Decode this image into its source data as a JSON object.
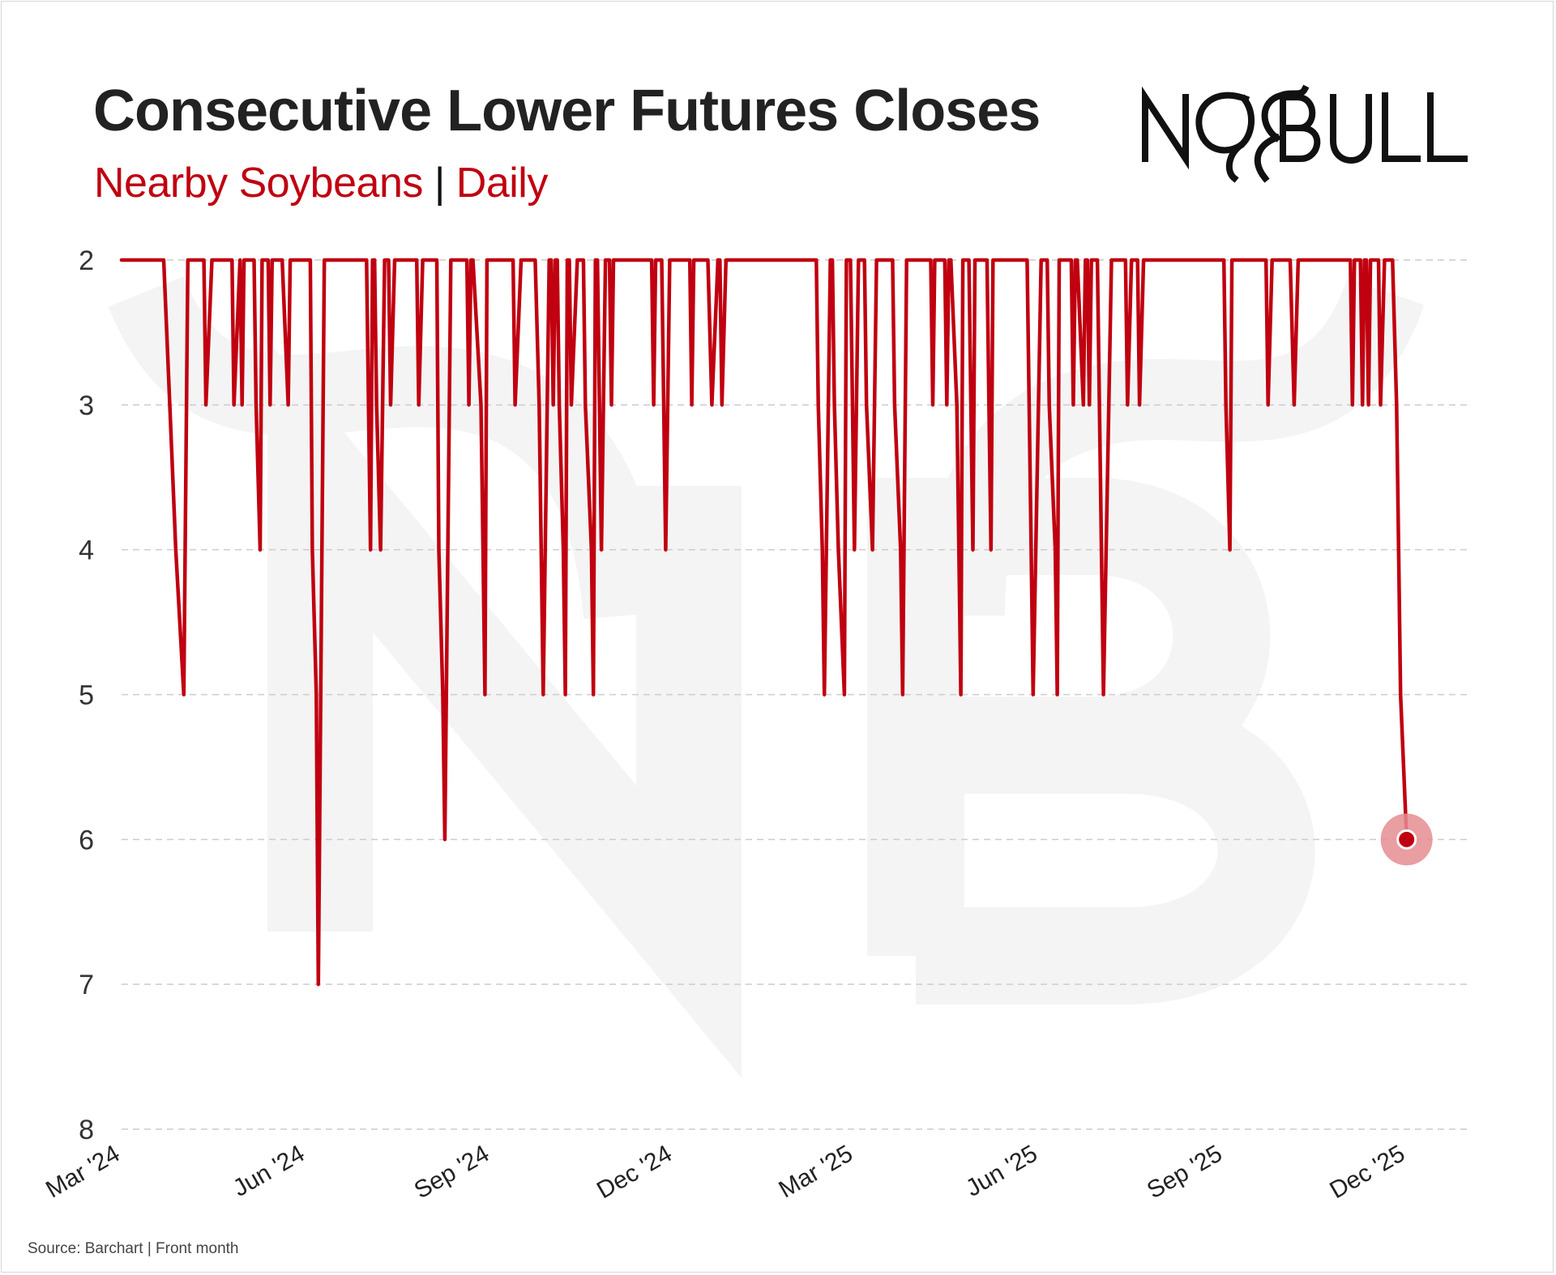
{
  "header": {
    "title": "Consecutive Lower Futures Closes",
    "subtitle_series": "Nearby Soybeans",
    "subtitle_sep": "|",
    "subtitle_freq": "Daily",
    "logo_text": "NO BULL"
  },
  "footer": {
    "source": "Source: Barchart | Front month"
  },
  "colors": {
    "series": "#c00010",
    "marker_halo": "#e58d92",
    "grid": "#cccccc",
    "title": "#222222"
  },
  "chart_data": {
    "type": "line",
    "title": "Consecutive Lower Futures Closes",
    "subtitle": "Nearby Soybeans | Daily",
    "xlabel": "",
    "ylabel": "",
    "y_inverted": true,
    "ylim": [
      2,
      8
    ],
    "yticks": [
      2,
      3,
      4,
      5,
      6,
      7,
      8
    ],
    "xlim": [
      "2024-03-01",
      "2025-12-31"
    ],
    "xticks": [
      {
        "label": "Mar '24",
        "date": "2024-03-01"
      },
      {
        "label": "Jun '24",
        "date": "2024-06-01"
      },
      {
        "label": "Sep '24",
        "date": "2024-09-01"
      },
      {
        "label": "Dec '24",
        "date": "2024-12-01"
      },
      {
        "label": "Mar '25",
        "date": "2025-03-01"
      },
      {
        "label": "Jun '25",
        "date": "2025-06-01"
      },
      {
        "label": "Sep '25",
        "date": "2025-09-01"
      },
      {
        "label": "Dec '25",
        "date": "2025-12-01"
      }
    ],
    "grid": "horizontal dashed",
    "legend": "none",
    "series": [
      {
        "points": [
          [
            "2024-03-01",
            2
          ],
          [
            "2024-03-22",
            2
          ],
          [
            "2024-03-25",
            3
          ],
          [
            "2024-03-28",
            4
          ],
          [
            "2024-04-01",
            5
          ],
          [
            "2024-04-03",
            2
          ],
          [
            "2024-04-11",
            2
          ],
          [
            "2024-04-12",
            3
          ],
          [
            "2024-04-15",
            2
          ],
          [
            "2024-04-25",
            2
          ],
          [
            "2024-04-26",
            3
          ],
          [
            "2024-04-29",
            2
          ],
          [
            "2024-04-30",
            3
          ],
          [
            "2024-05-01",
            2
          ],
          [
            "2024-05-06",
            2
          ],
          [
            "2024-05-07",
            3
          ],
          [
            "2024-05-09",
            4
          ],
          [
            "2024-05-10",
            2
          ],
          [
            "2024-05-13",
            2
          ],
          [
            "2024-05-14",
            3
          ],
          [
            "2024-05-15",
            2
          ],
          [
            "2024-05-20",
            2
          ],
          [
            "2024-05-23",
            3
          ],
          [
            "2024-05-24",
            2
          ],
          [
            "2024-06-03",
            2
          ],
          [
            "2024-06-04",
            4
          ],
          [
            "2024-06-06",
            5
          ],
          [
            "2024-06-07",
            7
          ],
          [
            "2024-06-10",
            2
          ],
          [
            "2024-07-01",
            2
          ],
          [
            "2024-07-02",
            3
          ],
          [
            "2024-07-03",
            4
          ],
          [
            "2024-07-04",
            2
          ],
          [
            "2024-07-05",
            2
          ],
          [
            "2024-07-06",
            3
          ],
          [
            "2024-07-08",
            4
          ],
          [
            "2024-07-10",
            2
          ],
          [
            "2024-07-12",
            2
          ],
          [
            "2024-07-13",
            3
          ],
          [
            "2024-07-15",
            2
          ],
          [
            "2024-07-26",
            2
          ],
          [
            "2024-07-27",
            3
          ],
          [
            "2024-07-29",
            2
          ],
          [
            "2024-08-05",
            2
          ],
          [
            "2024-08-06",
            4
          ],
          [
            "2024-08-08",
            5
          ],
          [
            "2024-08-09",
            6
          ],
          [
            "2024-08-12",
            2
          ],
          [
            "2024-08-20",
            2
          ],
          [
            "2024-08-21",
            3
          ],
          [
            "2024-08-22",
            2
          ],
          [
            "2024-08-23",
            2
          ],
          [
            "2024-08-27",
            3
          ],
          [
            "2024-08-28",
            4
          ],
          [
            "2024-08-29",
            5
          ],
          [
            "2024-08-30",
            2
          ],
          [
            "2024-09-12",
            2
          ],
          [
            "2024-09-13",
            3
          ],
          [
            "2024-09-16",
            2
          ],
          [
            "2024-09-23",
            2
          ],
          [
            "2024-09-25",
            3
          ],
          [
            "2024-09-26",
            4
          ],
          [
            "2024-09-27",
            5
          ],
          [
            "2024-09-30",
            2
          ],
          [
            "2024-10-01",
            2
          ],
          [
            "2024-10-02",
            3
          ],
          [
            "2024-10-03",
            2
          ],
          [
            "2024-10-04",
            2
          ],
          [
            "2024-10-05",
            3
          ],
          [
            "2024-10-07",
            4
          ],
          [
            "2024-10-08",
            5
          ],
          [
            "2024-10-09",
            2
          ],
          [
            "2024-10-10",
            2
          ],
          [
            "2024-10-11",
            3
          ],
          [
            "2024-10-14",
            2
          ],
          [
            "2024-10-17",
            2
          ],
          [
            "2024-10-18",
            3
          ],
          [
            "2024-10-21",
            4
          ],
          [
            "2024-10-22",
            5
          ],
          [
            "2024-10-23",
            2
          ],
          [
            "2024-10-24",
            2
          ],
          [
            "2024-10-25",
            3
          ],
          [
            "2024-10-26",
            4
          ],
          [
            "2024-10-28",
            2
          ],
          [
            "2024-10-30",
            2
          ],
          [
            "2024-10-31",
            3
          ],
          [
            "2024-11-01",
            2
          ],
          [
            "2024-11-20",
            2
          ],
          [
            "2024-11-21",
            3
          ],
          [
            "2024-11-22",
            2
          ],
          [
            "2024-11-25",
            2
          ],
          [
            "2024-11-26",
            3
          ],
          [
            "2024-11-27",
            4
          ],
          [
            "2024-11-29",
            2
          ],
          [
            "2024-12-09",
            2
          ],
          [
            "2024-12-10",
            3
          ],
          [
            "2024-12-11",
            2
          ],
          [
            "2024-12-18",
            2
          ],
          [
            "2024-12-20",
            3
          ],
          [
            "2024-12-23",
            2
          ],
          [
            "2024-12-24",
            2
          ],
          [
            "2024-12-25",
            3
          ],
          [
            "2024-12-27",
            2
          ],
          [
            "2025-02-10",
            2
          ],
          [
            "2025-02-11",
            3
          ],
          [
            "2025-02-13",
            4
          ],
          [
            "2025-02-14",
            5
          ],
          [
            "2025-02-17",
            2
          ],
          [
            "2025-02-18",
            2
          ],
          [
            "2025-02-19",
            3
          ],
          [
            "2025-02-21",
            4
          ],
          [
            "2025-02-24",
            5
          ],
          [
            "2025-02-25",
            2
          ],
          [
            "2025-02-27",
            2
          ],
          [
            "2025-02-28",
            3
          ],
          [
            "2025-03-01",
            4
          ],
          [
            "2025-03-03",
            2
          ],
          [
            "2025-03-06",
            2
          ],
          [
            "2025-03-07",
            3
          ],
          [
            "2025-03-10",
            4
          ],
          [
            "2025-03-12",
            2
          ],
          [
            "2025-03-20",
            2
          ],
          [
            "2025-03-21",
            3
          ],
          [
            "2025-03-24",
            4
          ],
          [
            "2025-03-25",
            5
          ],
          [
            "2025-03-27",
            2
          ],
          [
            "2025-04-08",
            2
          ],
          [
            "2025-04-09",
            3
          ],
          [
            "2025-04-10",
            2
          ],
          [
            "2025-04-15",
            2
          ],
          [
            "2025-04-16",
            3
          ],
          [
            "2025-04-17",
            2
          ],
          [
            "2025-04-18",
            2
          ],
          [
            "2025-04-21",
            3
          ],
          [
            "2025-04-22",
            4
          ],
          [
            "2025-04-23",
            5
          ],
          [
            "2025-04-24",
            2
          ],
          [
            "2025-04-27",
            2
          ],
          [
            "2025-04-28",
            3
          ],
          [
            "2025-04-29",
            4
          ],
          [
            "2025-04-30",
            2
          ],
          [
            "2025-05-06",
            2
          ],
          [
            "2025-05-07",
            3
          ],
          [
            "2025-05-08",
            4
          ],
          [
            "2025-05-09",
            2
          ],
          [
            "2025-05-26",
            2
          ],
          [
            "2025-05-27",
            3
          ],
          [
            "2025-05-28",
            4
          ],
          [
            "2025-05-29",
            5
          ],
          [
            "2025-06-02",
            2
          ],
          [
            "2025-06-05",
            2
          ],
          [
            "2025-06-06",
            3
          ],
          [
            "2025-06-09",
            4
          ],
          [
            "2025-06-10",
            5
          ],
          [
            "2025-06-11",
            2
          ],
          [
            "2025-06-17",
            2
          ],
          [
            "2025-06-18",
            3
          ],
          [
            "2025-06-19",
            2
          ],
          [
            "2025-06-20",
            2
          ],
          [
            "2025-06-23",
            3
          ],
          [
            "2025-06-24",
            2
          ],
          [
            "2025-06-25",
            2
          ],
          [
            "2025-06-26",
            3
          ],
          [
            "2025-06-27",
            2
          ],
          [
            "2025-06-30",
            2
          ],
          [
            "2025-07-01",
            3
          ],
          [
            "2025-07-02",
            4
          ],
          [
            "2025-07-03",
            5
          ],
          [
            "2025-07-07",
            2
          ],
          [
            "2025-07-14",
            2
          ],
          [
            "2025-07-15",
            3
          ],
          [
            "2025-07-17",
            2
          ],
          [
            "2025-07-20",
            2
          ],
          [
            "2025-07-21",
            3
          ],
          [
            "2025-07-23",
            2
          ],
          [
            "2025-09-01",
            2
          ],
          [
            "2025-09-02",
            3
          ],
          [
            "2025-09-04",
            4
          ],
          [
            "2025-09-05",
            2
          ],
          [
            "2025-09-22",
            2
          ],
          [
            "2025-09-23",
            3
          ],
          [
            "2025-09-25",
            2
          ],
          [
            "2025-10-04",
            2
          ],
          [
            "2025-10-06",
            3
          ],
          [
            "2025-10-08",
            2
          ],
          [
            "2025-11-03",
            2
          ],
          [
            "2025-11-04",
            3
          ],
          [
            "2025-11-05",
            2
          ],
          [
            "2025-11-08",
            2
          ],
          [
            "2025-11-09",
            3
          ],
          [
            "2025-11-10",
            2
          ],
          [
            "2025-11-11",
            2
          ],
          [
            "2025-11-12",
            3
          ],
          [
            "2025-11-13",
            2
          ],
          [
            "2025-11-17",
            2
          ],
          [
            "2025-11-18",
            3
          ],
          [
            "2025-11-20",
            2
          ],
          [
            "2025-11-24",
            2
          ],
          [
            "2025-11-26",
            3
          ],
          [
            "2025-11-27",
            4
          ],
          [
            "2025-11-28",
            5
          ],
          [
            "2025-12-01",
            6
          ]
        ]
      }
    ],
    "highlight": {
      "date": "2025-12-01",
      "value": 6
    }
  }
}
